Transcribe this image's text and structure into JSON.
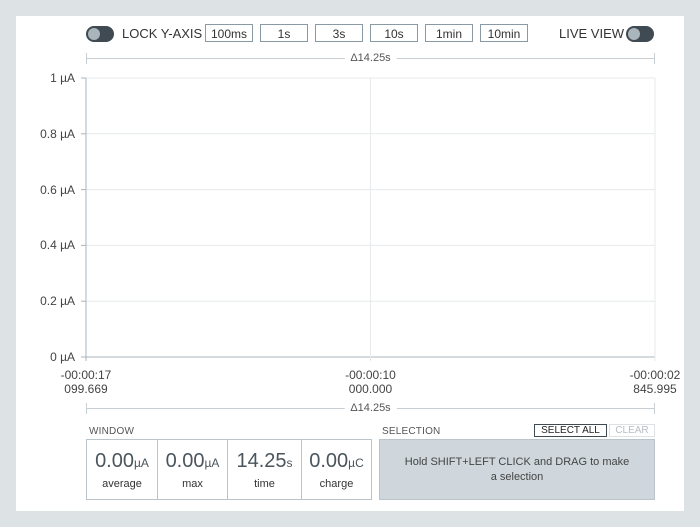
{
  "toolbar": {
    "lock_label": "LOCK Y-AXIS",
    "live_label": "LIVE VIEW",
    "window_buttons": [
      "100ms",
      "1s",
      "3s",
      "10s",
      "1min",
      "10min"
    ]
  },
  "delta_label": "Δ14.25s",
  "chart_data": {
    "type": "line",
    "series": [],
    "y_tick_labels": [
      "1 µA",
      "0.8 µA",
      "0.6 µA",
      "0.4 µA",
      "0.2 µA",
      "0 µA"
    ],
    "x_tick_labels": [
      {
        "time": "-00:00:17",
        "sub": "099.669"
      },
      {
        "time": "-00:00:10",
        "sub": "000.000"
      },
      {
        "time": "-00:00:02",
        "sub": "845.995"
      }
    ],
    "ylim": [
      0,
      1
    ],
    "grid": true
  },
  "window_section": {
    "title": "WINDOW",
    "stats": [
      {
        "value": "0.00",
        "unit": "µA",
        "name": "average"
      },
      {
        "value": "0.00",
        "unit": "µA",
        "name": "max"
      },
      {
        "value": "14.25",
        "unit": "s",
        "name": "time"
      },
      {
        "value": "0.00",
        "unit": "µC",
        "name": "charge"
      }
    ]
  },
  "selection_section": {
    "title": "SELECTION",
    "select_all": "SELECT ALL",
    "clear": "CLEAR",
    "hint": "Hold SHIFT+LEFT CLICK and DRAG to make a selection"
  },
  "colors": {
    "toggle_bg": "#3f4a52",
    "panel_bg": "#ffffff",
    "page_bg": "#dde2e5",
    "selection_bg": "#cfd7dc"
  }
}
